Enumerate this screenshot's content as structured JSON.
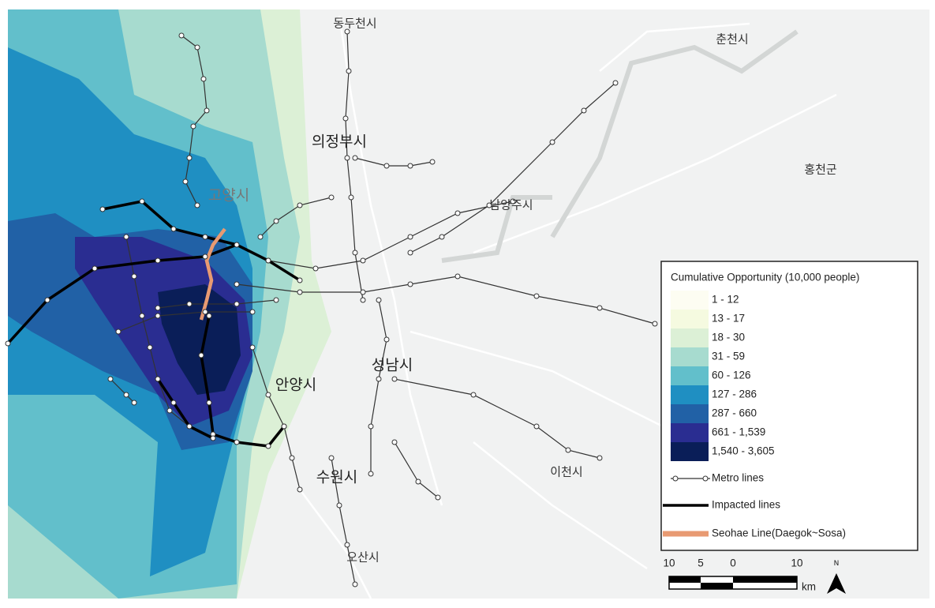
{
  "map": {
    "place_labels": [
      "동두천시",
      "의정부시",
      "춘천시",
      "홍천군",
      "고양시",
      "남양주시",
      "성남시",
      "안양시",
      "수원시",
      "이천시",
      "오산시"
    ]
  },
  "legend": {
    "title": "Cumulative Opportunity (10,000 people)",
    "classes": [
      {
        "label": "1 - 12",
        "color": "#fdfdf2"
      },
      {
        "label": "13 - 17",
        "color": "#f5fae0"
      },
      {
        "label": "18 - 30",
        "color": "#dcf0d6"
      },
      {
        "label": "31 - 59",
        "color": "#a7dbcf"
      },
      {
        "label": "60 - 126",
        "color": "#62bfcb"
      },
      {
        "label": "127 - 286",
        "color": "#1f8fc2"
      },
      {
        "label": "287 - 660",
        "color": "#2161a6"
      },
      {
        "label": "661 - 1,539",
        "color": "#2a2d91"
      },
      {
        "label": "1,540 - 3,605",
        "color": "#0a1e58"
      }
    ],
    "lines": [
      {
        "label": "Metro lines"
      },
      {
        "label": "Impacted lines"
      },
      {
        "label": "Seohae Line(Daegok~Sosa)"
      }
    ]
  },
  "scale_bar": {
    "labels": [
      10,
      5,
      0,
      10
    ],
    "unit": "km"
  },
  "north_arrow": "N"
}
